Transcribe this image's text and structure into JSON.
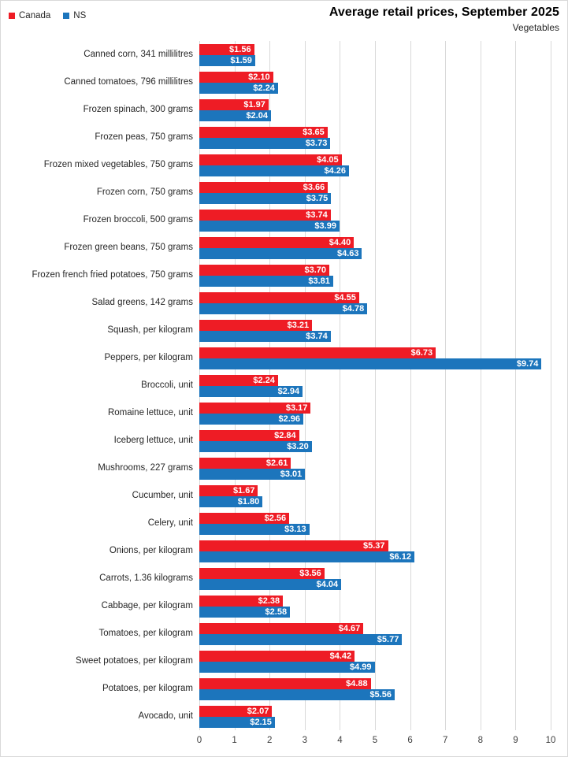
{
  "title": "Average retail prices, September 2025",
  "subtitle": "Vegetables",
  "colors": {
    "canada_red": "#ee1c25",
    "ns_blue": "#1c75bc",
    "gridline": "#d9d9d9",
    "value_label_text": "#ffffff",
    "category_label_text": "#262626",
    "axis_tick_text": "#404040"
  },
  "chart_data": {
    "type": "bar",
    "orientation": "horizontal",
    "title": "Average retail prices, September 2025",
    "subtitle": "Vegetables",
    "legend_position": "top-left",
    "grid": true,
    "value_prefix": "$",
    "value_labels": "inside-end",
    "xlim": [
      0,
      10
    ],
    "x_ticks": [
      0,
      1,
      2,
      3,
      4,
      5,
      6,
      7,
      8,
      9,
      10
    ],
    "categories": [
      "Canned corn, 341 millilitres",
      "Canned tomatoes, 796 millilitres",
      "Frozen spinach, 300 grams",
      "Frozen peas, 750 grams",
      "Frozen mixed vegetables, 750 grams",
      "Frozen corn, 750 grams",
      "Frozen broccoli, 500 grams",
      "Frozen green beans, 750 grams",
      "Frozen french fried potatoes, 750 grams",
      "Salad greens, 142 grams",
      "Squash, per kilogram",
      "Peppers, per kilogram",
      "Broccoli, unit",
      "Romaine lettuce, unit",
      "Iceberg lettuce, unit",
      "Mushrooms, 227 grams",
      "Cucumber, unit",
      "Celery, unit",
      "Onions, per kilogram",
      "Carrots, 1.36 kilograms",
      "Cabbage, per kilogram",
      "Tomatoes, per kilogram",
      "Sweet potatoes, per kilogram",
      "Potatoes, per kilogram",
      "Avocado, unit"
    ],
    "series": [
      {
        "name": "Canada",
        "color": "#ee1c25",
        "values": [
          1.56,
          2.1,
          1.97,
          3.65,
          4.05,
          3.66,
          3.74,
          4.4,
          3.7,
          4.55,
          3.21,
          6.73,
          2.24,
          3.17,
          2.84,
          2.61,
          1.67,
          2.56,
          5.37,
          3.56,
          2.38,
          4.67,
          4.42,
          4.88,
          2.07
        ]
      },
      {
        "name": "NS",
        "color": "#1c75bc",
        "values": [
          1.59,
          2.24,
          2.04,
          3.73,
          4.26,
          3.75,
          3.99,
          4.63,
          3.81,
          4.78,
          3.74,
          9.74,
          2.94,
          2.96,
          3.2,
          3.01,
          1.8,
          3.13,
          6.12,
          4.04,
          2.58,
          5.77,
          4.99,
          5.56,
          2.15
        ]
      }
    ]
  }
}
